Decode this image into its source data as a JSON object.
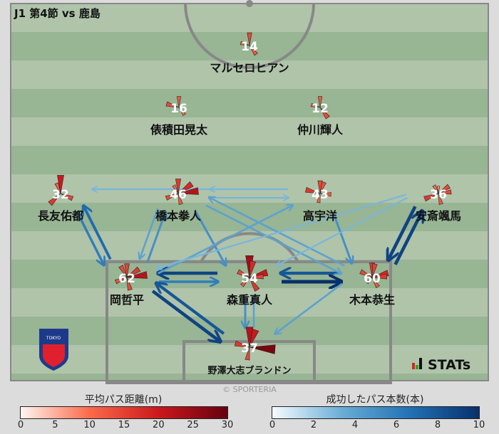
{
  "title": "J1 第4節 vs 鹿島",
  "copyright": "© SPORTERIA",
  "brand": "STATs",
  "logo_text": "FC TOKYO",
  "chart_data": {
    "type": "pass-network",
    "players": [
      {
        "number": "14",
        "name": "マルセロヒアン",
        "dist": [
          14,
          12,
          10
        ]
      },
      {
        "number": "16",
        "name": "俵積田晃太",
        "dist": [
          12,
          10,
          14
        ]
      },
      {
        "number": "12",
        "name": "仲川輝人",
        "dist": [
          12,
          14,
          10
        ]
      },
      {
        "number": "32",
        "name": "長友佑都",
        "dist": [
          20,
          14,
          16,
          12
        ]
      },
      {
        "number": "46",
        "name": "橋本拳人",
        "dist": [
          16,
          22,
          12,
          14,
          10,
          18
        ]
      },
      {
        "number": "43",
        "name": "高宇洋",
        "dist": [
          14,
          12,
          10,
          16,
          13
        ]
      },
      {
        "number": "36",
        "name": "安斎颯馬",
        "dist": [
          8,
          14,
          12,
          16,
          10,
          14
        ]
      },
      {
        "number": "62",
        "name": "岡哲平",
        "dist": [
          15,
          22,
          14,
          13,
          14,
          16
        ]
      },
      {
        "number": "54",
        "name": "森重真人",
        "dist": [
          24,
          20,
          16,
          12,
          14,
          18,
          15
        ]
      },
      {
        "number": "60",
        "name": "木本恭生",
        "dist": [
          16,
          18,
          12,
          8,
          14,
          15,
          16
        ]
      },
      {
        "number": "37",
        "name": "野澤大志ブランドン",
        "dist": [
          22,
          28,
          14,
          16,
          20
        ]
      }
    ],
    "passes": [
      {
        "from": 7,
        "to": 3,
        "count": 7
      },
      {
        "from": 3,
        "to": 7,
        "count": 6
      },
      {
        "from": 4,
        "to": 7,
        "count": 4
      },
      {
        "from": 7,
        "to": 4,
        "count": 5
      },
      {
        "from": 8,
        "to": 7,
        "count": 9
      },
      {
        "from": 7,
        "to": 8,
        "count": 6
      },
      {
        "from": 9,
        "to": 8,
        "count": 8
      },
      {
        "from": 8,
        "to": 9,
        "count": 10
      },
      {
        "from": 9,
        "to": 6,
        "count": 9
      },
      {
        "from": 6,
        "to": 9,
        "count": 9
      },
      {
        "from": 5,
        "to": 3,
        "count": 3
      },
      {
        "from": 4,
        "to": 5,
        "count": 3
      },
      {
        "from": 5,
        "to": 4,
        "count": 3
      },
      {
        "from": 4,
        "to": 8,
        "count": 5
      },
      {
        "from": 5,
        "to": 9,
        "count": 5
      },
      {
        "from": 4,
        "to": 9,
        "count": 4
      },
      {
        "from": 9,
        "to": 4,
        "count": 4
      },
      {
        "from": 7,
        "to": 5,
        "count": 4
      },
      {
        "from": 6,
        "to": 7,
        "count": 3
      },
      {
        "from": 6,
        "to": 8,
        "count": 3
      },
      {
        "from": 7,
        "to": 10,
        "count": 9
      },
      {
        "from": 10,
        "to": 7,
        "count": 8
      },
      {
        "from": 8,
        "to": 10,
        "count": 5
      },
      {
        "from": 10,
        "to": 8,
        "count": 4
      },
      {
        "from": 9,
        "to": 10,
        "count": 4
      }
    ],
    "legend_distance": {
      "title": "平均パス距離(m)",
      "ticks": [
        "0",
        "5",
        "10",
        "15",
        "20",
        "25",
        "30"
      ],
      "range": [
        0,
        30
      ],
      "colors": [
        "#fff5f0",
        "#fb6a4a",
        "#cb181d",
        "#67000d"
      ]
    },
    "legend_count": {
      "title": "成功したパス本数(本)",
      "ticks": [
        "0",
        "2",
        "4",
        "6",
        "8",
        "10"
      ],
      "range": [
        0,
        10
      ],
      "colors": [
        "#f7fbff",
        "#6baed6",
        "#2171b5",
        "#08306b"
      ]
    }
  }
}
